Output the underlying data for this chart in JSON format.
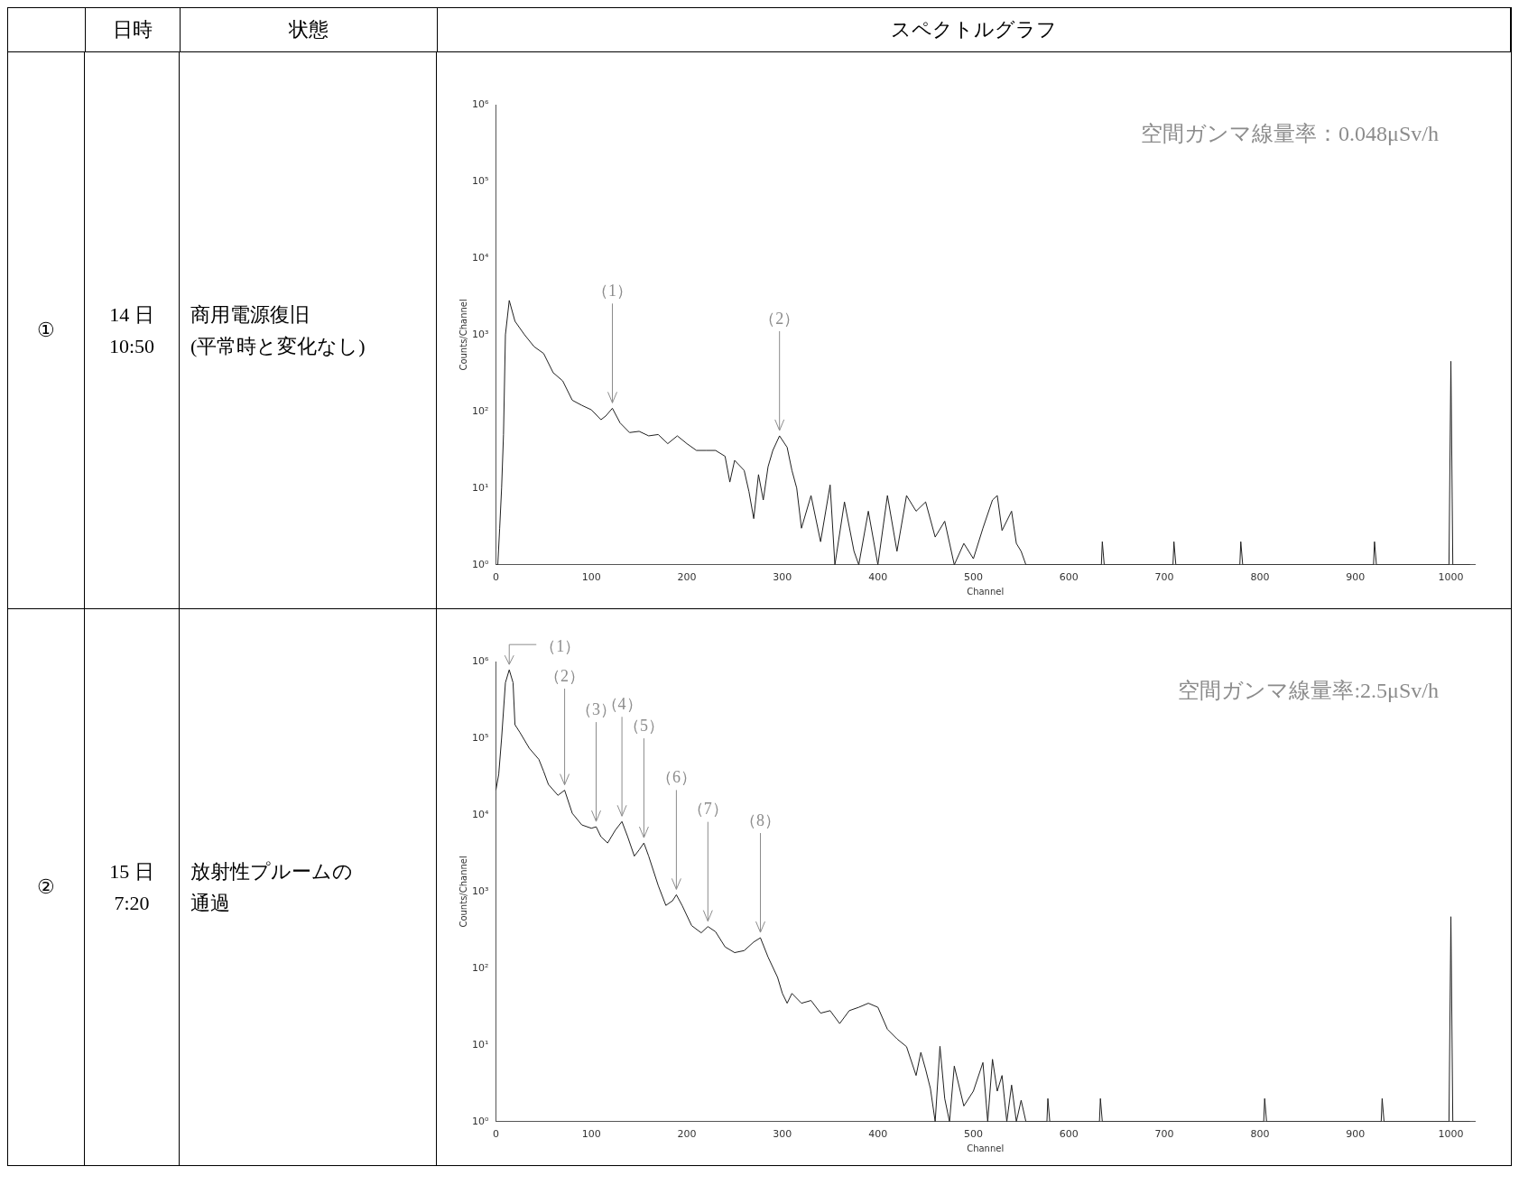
{
  "chart_data": [
    {
      "type": "other",
      "annotations": [
        "日時",
        "状態",
        "スペクトルグラフ"
      ]
    },
    {
      "type": "other",
      "annotations": [
        "①",
        "14 日\n10:50",
        "商用電源復旧",
        "(平常時と変化なし)"
      ]
    },
    {
      "type": "line",
      "xlabel": "Channel",
      "ylabel": "Counts/Channel",
      "log": "y",
      "color": "#202020",
      "x": [
        0,
        2,
        4,
        6,
        8,
        10,
        14,
        20,
        30,
        40,
        50,
        60,
        70,
        80,
        90,
        100,
        110,
        115,
        122,
        130,
        140,
        150,
        160,
        170,
        180,
        190,
        200,
        210,
        220,
        230,
        240,
        245,
        250,
        260,
        265,
        270,
        275,
        280,
        285,
        290,
        297,
        305,
        310,
        315,
        320,
        330,
        340,
        350,
        355,
        365,
        375,
        380,
        390,
        400,
        410,
        420,
        430,
        440,
        450,
        460,
        470,
        480,
        490,
        500,
        510,
        520,
        525,
        530,
        540,
        545,
        550,
        555,
        560,
        634,
        635,
        637,
        709,
        710,
        712,
        779,
        780,
        782,
        919,
        920,
        922,
        998,
        1000,
        1002,
        1020
      ],
      "values": [
        1,
        1,
        3,
        10,
        50,
        1000,
        2800,
        1500,
        1000,
        700,
        570,
        320,
        250,
        140,
        120,
        105,
        78,
        87,
        110,
        71,
        53,
        55,
        48,
        50,
        38,
        48,
        38,
        31,
        31,
        31,
        26,
        12,
        23,
        17,
        9,
        4,
        15,
        7,
        19,
        31,
        48,
        34,
        17,
        10,
        3,
        8,
        2,
        11,
        1,
        6.6,
        1.5,
        1,
        5,
        1,
        8,
        1.5,
        8,
        5,
        6.6,
        2.3,
        3.7,
        1,
        1.9,
        1.2,
        3,
        7,
        8,
        2.8,
        5,
        1.9,
        1.5,
        1,
        1,
        1,
        2,
        1,
        1,
        2,
        1,
        1,
        2,
        1,
        1,
        2,
        1,
        1,
        450,
        1,
        1
      ],
      "xlim": [
        0,
        1025
      ],
      "xticks": [
        0,
        100,
        200,
        300,
        400,
        500,
        600,
        700,
        800,
        900,
        1000
      ],
      "ylim": [
        1,
        1000000
      ],
      "yticks": [
        {
          "value": 1,
          "label": "10⁰"
        },
        {
          "value": 10,
          "label": "10¹"
        },
        {
          "value": 100,
          "label": "10²"
        },
        {
          "value": 1000,
          "label": "10³"
        },
        {
          "value": 10000,
          "label": "10⁴"
        },
        {
          "value": 100000,
          "label": "10⁵"
        },
        {
          "value": 1000000,
          "label": "10⁶"
        }
      ],
      "annotations": [
        "空間ガンマ線量率：0.048μSv/h",
        {
          "text": "（1）",
          "x": 122,
          "y": 110
        },
        {
          "text": "（2）",
          "x": 297,
          "y": 48
        }
      ]
    },
    {
      "type": "other",
      "annotations": [
        "②",
        "15 日\n7:20",
        "放射性プルームの",
        "通過"
      ]
    },
    {
      "type": "line",
      "xlabel": "Channel",
      "ylabel": "Counts/Channel",
      "log": "y",
      "color": "#202020",
      "x": [
        0,
        3,
        6,
        10,
        14,
        18,
        20,
        25,
        35,
        45,
        50,
        55,
        65,
        72,
        80,
        90,
        100,
        105,
        110,
        117,
        125,
        132,
        138,
        145,
        150,
        155,
        160,
        170,
        178,
        185,
        189,
        195,
        205,
        215,
        222,
        230,
        240,
        250,
        260,
        270,
        277,
        285,
        295,
        300,
        305,
        310,
        320,
        330,
        340,
        350,
        360,
        370,
        380,
        390,
        400,
        410,
        420,
        430,
        440,
        445,
        450,
        455,
        460,
        465,
        470,
        475,
        480,
        490,
        500,
        510,
        515,
        520,
        525,
        530,
        535,
        540,
        545,
        550,
        555,
        577,
        578,
        580,
        632,
        633,
        635,
        804,
        805,
        807,
        927,
        928,
        930,
        998,
        1000,
        1002,
        1020
      ],
      "values": [
        21000,
        34000,
        100000,
        530000,
        780000,
        530000,
        150000,
        120000,
        74000,
        53000,
        37000,
        25000,
        18000,
        21000,
        10500,
        7400,
        6700,
        7000,
        5200,
        4300,
        6300,
        8200,
        5200,
        2900,
        3500,
        4300,
        2900,
        1200,
        660,
        760,
        910,
        660,
        360,
        290,
        350,
        300,
        190,
        160,
        170,
        220,
        250,
        140,
        76,
        47,
        35,
        47,
        35,
        38,
        26,
        28,
        19,
        28,
        31,
        35,
        31,
        16,
        12,
        9.5,
        4,
        8,
        4.8,
        2.7,
        1,
        9.6,
        2,
        1,
        5.3,
        1.6,
        2.5,
        5.9,
        1,
        6.5,
        2.5,
        4,
        1,
        3,
        1,
        1.9,
        1,
        1,
        2,
        1,
        1,
        2,
        1,
        1,
        2,
        1,
        1,
        2,
        1,
        1,
        470,
        1,
        1
      ],
      "xlim": [
        0,
        1025
      ],
      "xticks": [
        0,
        100,
        200,
        300,
        400,
        500,
        600,
        700,
        800,
        900,
        1000
      ],
      "ylim": [
        1,
        1000000
      ],
      "yticks": [
        {
          "value": 1,
          "label": "10⁰"
        },
        {
          "value": 10,
          "label": "10¹"
        },
        {
          "value": 100,
          "label": "10²"
        },
        {
          "value": 1000,
          "label": "10³"
        },
        {
          "value": 10000,
          "label": "10⁴"
        },
        {
          "value": 100000,
          "label": "10⁵"
        },
        {
          "value": 1000000,
          "label": "10⁶"
        }
      ],
      "annotations": [
        "空間ガンマ線量率:2.5μSv/h",
        {
          "text": "（1）",
          "x": 14,
          "y": 780000
        },
        {
          "text": "（2）",
          "x": 72,
          "y": 21000
        },
        {
          "text": "（3）",
          "x": 105,
          "y": 7000
        },
        {
          "text": "（4）",
          "x": 132,
          "y": 8200
        },
        {
          "text": "（5）",
          "x": 155,
          "y": 4300
        },
        {
          "text": "（6）",
          "x": 189,
          "y": 910
        },
        {
          "text": "（7）",
          "x": 222,
          "y": 350
        },
        {
          "text": "（8）",
          "x": 277,
          "y": 250
        }
      ]
    }
  ]
}
